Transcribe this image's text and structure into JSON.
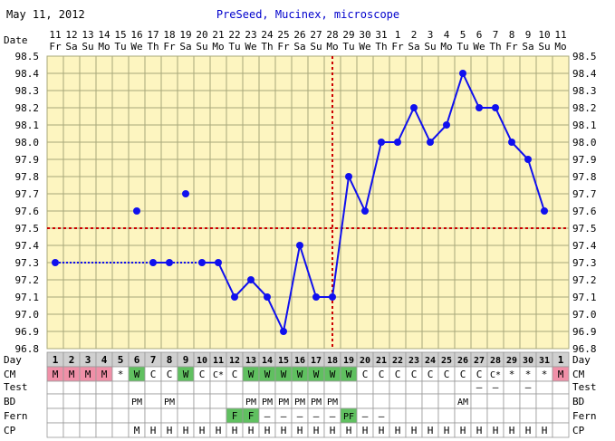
{
  "header": {
    "date": "May 11, 2012",
    "title": "PreSeed, Mucinex, microscope"
  },
  "labels": {
    "date": "Date",
    "day": "Day",
    "cm": "CM",
    "test": "Test",
    "bd": "BD",
    "fern": "Fern",
    "cp": "CP"
  },
  "colors": {
    "background": "#ffffff",
    "plot_fill": "#fdf5c0",
    "grid": "#a8a87a",
    "line": "#1010ee",
    "coverline": "#cc0000",
    "title": "#0000cc",
    "day_row": "#d0d0d0",
    "menses": "#f090a8",
    "fertile": "#60c060"
  },
  "dates": [
    {
      "n": "11",
      "w": "Fr"
    },
    {
      "n": "12",
      "w": "Sa"
    },
    {
      "n": "13",
      "w": "Su"
    },
    {
      "n": "14",
      "w": "Mo"
    },
    {
      "n": "15",
      "w": "Tu"
    },
    {
      "n": "16",
      "w": "We"
    },
    {
      "n": "17",
      "w": "Th"
    },
    {
      "n": "18",
      "w": "Fr"
    },
    {
      "n": "19",
      "w": "Sa"
    },
    {
      "n": "20",
      "w": "Su"
    },
    {
      "n": "21",
      "w": "Mo"
    },
    {
      "n": "22",
      "w": "Tu"
    },
    {
      "n": "23",
      "w": "We"
    },
    {
      "n": "24",
      "w": "Th"
    },
    {
      "n": "25",
      "w": "Fr"
    },
    {
      "n": "26",
      "w": "Sa"
    },
    {
      "n": "27",
      "w": "Su"
    },
    {
      "n": "28",
      "w": "Mo"
    },
    {
      "n": "29",
      "w": "Tu"
    },
    {
      "n": "30",
      "w": "We"
    },
    {
      "n": "31",
      "w": "Th"
    },
    {
      "n": "1",
      "w": "Fr"
    },
    {
      "n": "2",
      "w": "Sa"
    },
    {
      "n": "3",
      "w": "Su"
    },
    {
      "n": "4",
      "w": "Mo"
    },
    {
      "n": "5",
      "w": "Tu"
    },
    {
      "n": "6",
      "w": "We"
    },
    {
      "n": "7",
      "w": "Th"
    },
    {
      "n": "8",
      "w": "Fr"
    },
    {
      "n": "9",
      "w": "Sa"
    },
    {
      "n": "10",
      "w": "Su"
    },
    {
      "n": "11",
      "w": "Mo"
    }
  ],
  "chart_data": {
    "type": "line",
    "y_ticks": [
      "98.5",
      "98.4",
      "98.3",
      "98.2",
      "98.1",
      "98.0",
      "97.9",
      "97.8",
      "97.7",
      "97.6",
      "97.5",
      "97.4",
      "97.3",
      "97.2",
      "97.1",
      "97.0",
      "96.9",
      "96.8"
    ],
    "ylim": [
      96.8,
      98.5
    ],
    "coverline": 97.5,
    "ovulation_day": 18,
    "grid": true,
    "temps": [
      97.3,
      null,
      null,
      null,
      null,
      97.6,
      97.3,
      97.3,
      97.7,
      97.3,
      97.3,
      97.1,
      97.2,
      97.1,
      96.9,
      97.4,
      97.1,
      97.1,
      97.8,
      97.6,
      98.0,
      98.0,
      98.2,
      98.0,
      98.1,
      98.4,
      98.2,
      98.2,
      98.0,
      97.9,
      97.6,
      null
    ],
    "excluded_days": [
      1,
      6,
      7,
      8,
      9,
      10,
      11
    ],
    "segments": [
      {
        "from": 1,
        "to": 7,
        "style": "dotted"
      },
      {
        "from": 7,
        "to": 8,
        "style": "solid"
      },
      {
        "from": 8,
        "to": 10,
        "style": "dotted"
      },
      {
        "from": 10,
        "to": 31,
        "style": "solid"
      }
    ]
  },
  "rows": {
    "day": [
      "1",
      "2",
      "3",
      "4",
      "5",
      "6",
      "7",
      "8",
      "9",
      "10",
      "11",
      "12",
      "13",
      "14",
      "15",
      "16",
      "17",
      "18",
      "19",
      "20",
      "21",
      "22",
      "23",
      "24",
      "25",
      "26",
      "27",
      "28",
      "29",
      "30",
      "31",
      "1"
    ],
    "cm": [
      "M",
      "M",
      "M",
      "M",
      "*",
      "W",
      "C",
      "C",
      "W",
      "C",
      "C*",
      "C",
      "W",
      "W",
      "W",
      "W",
      "W",
      "W",
      "W",
      "C",
      "C",
      "C",
      "C",
      "C",
      "C",
      "C",
      "C",
      "C*",
      "*",
      "*",
      "*",
      "M"
    ],
    "cm_colors": [
      "menses",
      "menses",
      "menses",
      "menses",
      "",
      "fertile",
      "",
      "",
      "fertile",
      "",
      "",
      "",
      "fertile",
      "fertile",
      "fertile",
      "fertile",
      "fertile",
      "fertile",
      "fertile",
      "",
      "",
      "",
      "",
      "",
      "",
      "",
      "",
      "",
      "",
      "",
      "",
      "menses"
    ],
    "test": [
      "",
      "",
      "",
      "",
      "",
      "",
      "",
      "",
      "",
      "",
      "",
      "",
      "",
      "",
      "",
      "",
      "",
      "",
      "",
      "",
      "",
      "",
      "",
      "",
      "",
      "",
      "—",
      "—",
      "",
      "—",
      "",
      ""
    ],
    "bd": [
      "",
      "",
      "",
      "",
      "",
      "PM",
      "",
      "PM",
      "",
      "",
      "",
      "",
      "PM",
      "PM",
      "PM",
      "PM",
      "PM",
      "PM",
      "",
      "",
      "",
      "",
      "",
      "",
      "",
      "AM",
      "",
      "",
      "",
      "",
      "",
      ""
    ],
    "fern": [
      "",
      "",
      "",
      "",
      "",
      "",
      "",
      "",
      "",
      "",
      "",
      "F",
      "F",
      "—",
      "—",
      "—",
      "—",
      "—",
      "PF",
      "—",
      "—",
      "",
      "",
      "",
      "",
      "",
      "",
      "",
      "",
      "",
      "",
      ""
    ],
    "fern_colors": [
      "",
      "",
      "",
      "",
      "",
      "",
      "",
      "",
      "",
      "",
      "",
      "fertile",
      "fertile",
      "",
      "",
      "",
      "",
      "",
      "fertile",
      "",
      "",
      "",
      "",
      "",
      "",
      "",
      "",
      "",
      "",
      "",
      "",
      ""
    ],
    "cp": [
      "",
      "",
      "",
      "",
      "",
      "M",
      "H",
      "H",
      "H",
      "H",
      "H",
      "H",
      "H",
      "H",
      "H",
      "H",
      "H",
      "H",
      "H",
      "H",
      "H",
      "H",
      "H",
      "H",
      "H",
      "H",
      "H",
      "H",
      "H",
      "H",
      "H",
      ""
    ]
  }
}
